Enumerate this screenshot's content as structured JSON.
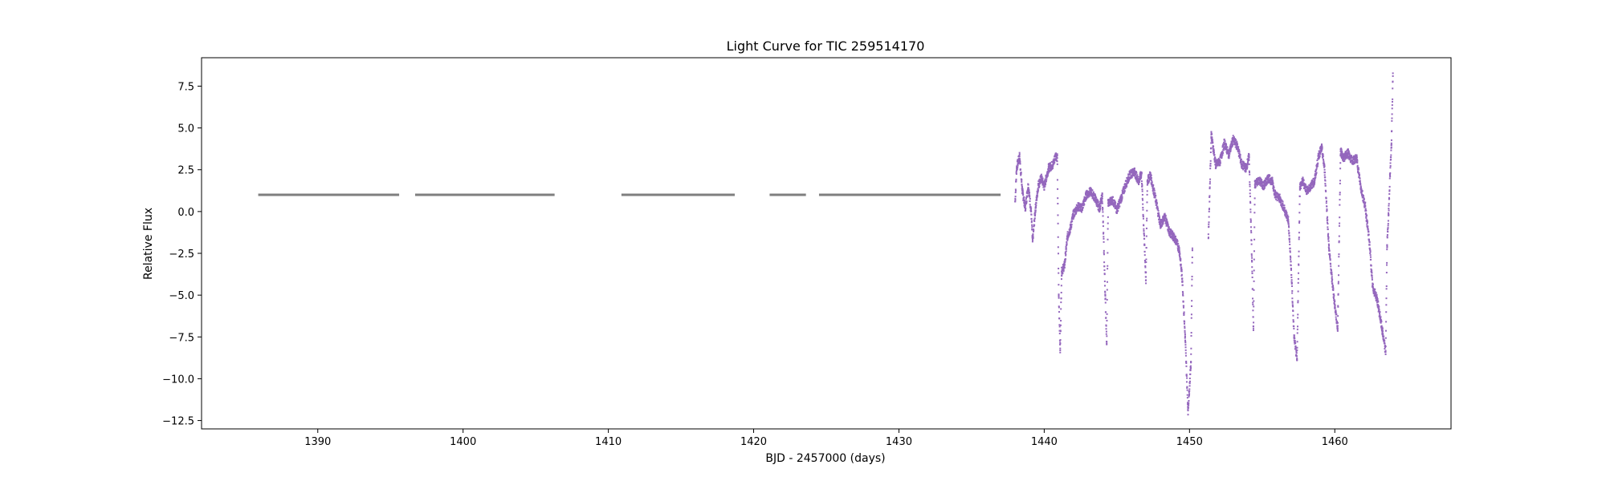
{
  "chart_data": {
    "type": "scatter",
    "title": "Light Curve for TIC 259514170",
    "xlabel": "BJD - 2457000 (days)",
    "ylabel": "Relative Flux",
    "xlim": [
      1382,
      1468
    ],
    "ylim": [
      -13.0,
      9.2
    ],
    "x_ticks": [
      1390,
      1400,
      1410,
      1420,
      1430,
      1440,
      1450,
      1460
    ],
    "y_ticks": [
      7.5,
      5.0,
      2.5,
      0.0,
      -2.5,
      -5.0,
      -7.5,
      -10.0,
      -12.5
    ],
    "grid": false,
    "legend": "none",
    "colors": {
      "flat": "#7f7f7f",
      "variable": "#9467bd"
    },
    "series": [
      {
        "style": "flat-segments",
        "segments": [
          {
            "x": [
              1385.9,
              1395.6
            ],
            "y": 1.0
          },
          {
            "x": [
              1396.7,
              1406.3
            ],
            "y": 1.0
          },
          {
            "x": [
              1410.9,
              1418.7
            ],
            "y": 1.0
          },
          {
            "x": [
              1421.1,
              1423.6
            ],
            "y": 1.0
          },
          {
            "x": [
              1424.5,
              1437.0
            ],
            "y": 1.0
          }
        ]
      },
      {
        "style": "scatter",
        "trace": [
          [
            1438.0,
            0.6
          ],
          [
            1438.1,
            2.6
          ],
          [
            1438.3,
            3.3
          ],
          [
            1438.5,
            1.2
          ],
          [
            1438.7,
            0.2
          ],
          [
            1438.9,
            1.6
          ],
          [
            1439.1,
            0.0
          ],
          [
            1439.2,
            -1.8
          ],
          [
            1439.4,
            0.2
          ],
          [
            1439.6,
            1.6
          ],
          [
            1439.8,
            2.0
          ],
          [
            1440.0,
            1.5
          ],
          [
            1440.3,
            2.6
          ],
          [
            1440.6,
            2.8
          ],
          [
            1440.8,
            3.4
          ],
          [
            1440.9,
            3.2
          ],
          [
            1441.0,
            -5.0
          ],
          [
            1441.1,
            -8.3
          ],
          [
            1441.2,
            -3.6
          ],
          [
            1441.4,
            -3.2
          ],
          [
            1441.6,
            -1.5
          ],
          [
            1441.8,
            -1.0
          ],
          [
            1442.0,
            -0.2
          ],
          [
            1442.3,
            0.3
          ],
          [
            1442.6,
            0.2
          ],
          [
            1442.9,
            1.0
          ],
          [
            1443.2,
            1.2
          ],
          [
            1443.5,
            0.8
          ],
          [
            1443.8,
            0.2
          ],
          [
            1444.0,
            0.9
          ],
          [
            1444.2,
            -5.0
          ],
          [
            1444.3,
            -7.8
          ],
          [
            1444.4,
            0.5
          ],
          [
            1444.7,
            0.7
          ],
          [
            1445.0,
            0.1
          ],
          [
            1445.3,
            0.8
          ],
          [
            1445.6,
            1.6
          ],
          [
            1445.9,
            2.2
          ],
          [
            1446.2,
            2.4
          ],
          [
            1446.5,
            1.8
          ],
          [
            1446.7,
            2.3
          ],
          [
            1446.9,
            -2.0
          ],
          [
            1447.0,
            -4.1
          ],
          [
            1447.1,
            1.8
          ],
          [
            1447.3,
            2.2
          ],
          [
            1447.5,
            1.4
          ],
          [
            1447.7,
            0.6
          ],
          [
            1448.0,
            -0.8
          ],
          [
            1448.3,
            -0.3
          ],
          [
            1448.6,
            -1.2
          ],
          [
            1448.9,
            -1.5
          ],
          [
            1449.1,
            -1.8
          ],
          [
            1449.3,
            -2.3
          ],
          [
            1449.5,
            -4.0
          ],
          [
            1449.7,
            -7.5
          ],
          [
            1449.9,
            -11.9
          ],
          [
            1450.1,
            -9.0
          ],
          [
            1450.2,
            -2.2
          ],
          [
            1451.3,
            -1.6
          ],
          [
            1451.5,
            4.6
          ],
          [
            1451.8,
            2.8
          ],
          [
            1452.1,
            3.0
          ],
          [
            1452.4,
            4.1
          ],
          [
            1452.7,
            3.4
          ],
          [
            1453.0,
            4.3
          ],
          [
            1453.3,
            3.9
          ],
          [
            1453.6,
            2.8
          ],
          [
            1453.9,
            2.6
          ],
          [
            1454.1,
            3.3
          ],
          [
            1454.3,
            -3.0
          ],
          [
            1454.4,
            -7.1
          ],
          [
            1454.5,
            1.6
          ],
          [
            1454.8,
            1.9
          ],
          [
            1455.1,
            1.5
          ],
          [
            1455.4,
            2.0
          ],
          [
            1455.7,
            1.8
          ],
          [
            1455.9,
            1.0
          ],
          [
            1456.2,
            0.8
          ],
          [
            1456.5,
            0.2
          ],
          [
            1456.8,
            -0.5
          ],
          [
            1457.0,
            -3.5
          ],
          [
            1457.2,
            -7.5
          ],
          [
            1457.4,
            -8.9
          ],
          [
            1457.6,
            1.5
          ],
          [
            1457.8,
            1.8
          ],
          [
            1458.1,
            1.2
          ],
          [
            1458.4,
            1.6
          ],
          [
            1458.6,
            1.8
          ],
          [
            1458.9,
            3.4
          ],
          [
            1459.1,
            3.8
          ],
          [
            1459.3,
            2.5
          ],
          [
            1459.6,
            -2.2
          ],
          [
            1459.8,
            -4.0
          ],
          [
            1460.0,
            -5.6
          ],
          [
            1460.2,
            -7.0
          ],
          [
            1460.4,
            3.6
          ],
          [
            1460.6,
            3.2
          ],
          [
            1460.9,
            3.5
          ],
          [
            1461.2,
            3.0
          ],
          [
            1461.5,
            3.2
          ],
          [
            1461.8,
            1.4
          ],
          [
            1462.1,
            0.3
          ],
          [
            1462.4,
            -2.0
          ],
          [
            1462.6,
            -4.5
          ],
          [
            1462.9,
            -5.2
          ],
          [
            1463.1,
            -6.2
          ],
          [
            1463.3,
            -7.3
          ],
          [
            1463.5,
            -8.4
          ],
          [
            1463.6,
            -2.0
          ],
          [
            1463.7,
            -0.2
          ],
          [
            1463.8,
            2.2
          ],
          [
            1463.9,
            4.0
          ],
          [
            1464.0,
            8.1
          ]
        ]
      }
    ]
  }
}
